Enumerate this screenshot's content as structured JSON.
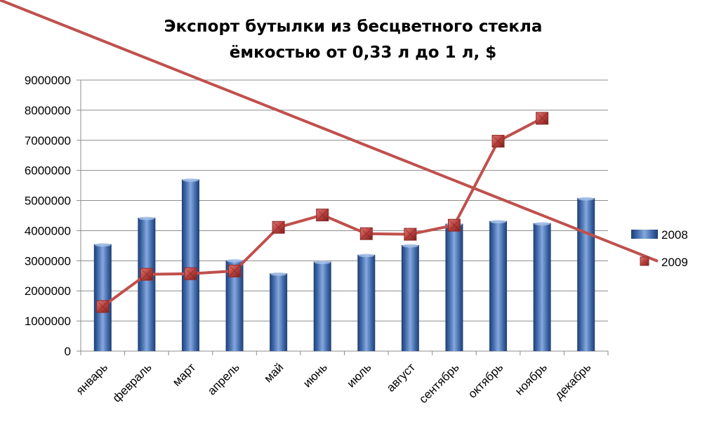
{
  "chart_data": {
    "type": "bar",
    "title": [
      "Экспорт бутылки из бесцветного стекла",
      "ёмкостью от 0,33 л до 1 л, $"
    ],
    "categories": [
      "январь",
      "февраль",
      "март",
      "апрель",
      "май",
      "июнь",
      "июль",
      "август",
      "сентябрь",
      "октябрь",
      "ноябрь",
      "декабрь"
    ],
    "series": [
      {
        "name": "2008",
        "type": "bar",
        "color": "#4a75b5",
        "values": [
          3550000,
          4430000,
          5700000,
          3020000,
          2580000,
          2970000,
          3200000,
          3520000,
          4230000,
          4320000,
          4250000,
          5080000
        ]
      },
      {
        "name": "2009",
        "type": "line",
        "color": "#c0504d",
        "values": [
          1480000,
          2550000,
          2570000,
          2660000,
          4110000,
          4520000,
          3900000,
          3880000,
          4180000,
          6970000,
          7730000,
          null
        ]
      }
    ],
    "ylim": [
      0,
      9000000
    ],
    "yticks": [
      "0",
      "1000000",
      "2000000",
      "3000000",
      "4000000",
      "5000000",
      "6000000",
      "7000000",
      "8000000",
      "9000000"
    ],
    "grid": true,
    "legend": "right"
  }
}
